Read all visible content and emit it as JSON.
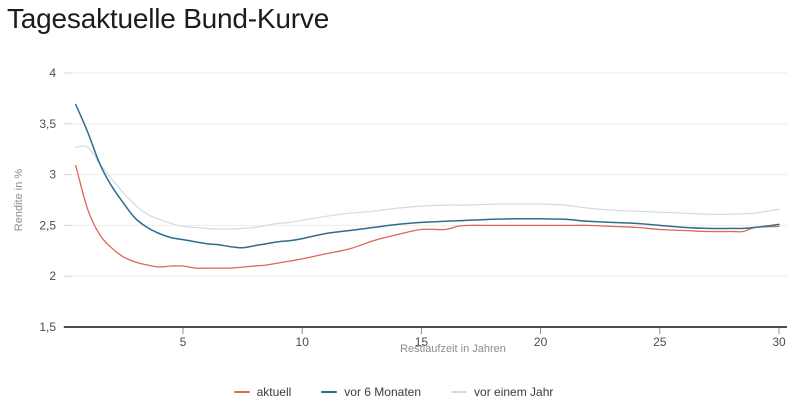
{
  "title": "Tagesaktuelle Bund-Kurve",
  "chart_data": {
    "type": "line",
    "title": "Tagesaktuelle Bund-Kurve",
    "xlabel": "Restlaufzeit in Jahren",
    "ylabel": "Rendite in %",
    "xlim": [
      0,
      30.3
    ],
    "ylim": [
      1.5,
      4
    ],
    "grid": "horizontal",
    "legend_position": "bottom",
    "x_ticks": [
      {
        "v": 5,
        "label": "5"
      },
      {
        "v": 10,
        "label": "10"
      },
      {
        "v": 15,
        "label": "15"
      },
      {
        "v": 20,
        "label": "20"
      },
      {
        "v": 25,
        "label": "25"
      },
      {
        "v": 30,
        "label": "30"
      }
    ],
    "y_ticks": [
      {
        "v": 4.0,
        "label": "4"
      },
      {
        "v": 3.5,
        "label": "3,5"
      },
      {
        "v": 3.0,
        "label": "3"
      },
      {
        "v": 2.5,
        "label": "2,5"
      },
      {
        "v": 2.0,
        "label": "2"
      },
      {
        "v": 1.5,
        "label": "1,5"
      }
    ],
    "x": [
      0.5,
      1,
      1.5,
      2,
      2.5,
      3,
      3.5,
      4,
      4.5,
      5,
      5.5,
      6,
      6.5,
      7,
      7.5,
      8,
      8.5,
      9,
      9.5,
      10,
      11,
      12,
      13,
      14,
      15,
      16,
      16.5,
      17,
      18,
      19,
      20,
      21,
      22,
      23,
      24,
      25,
      26,
      27,
      28,
      28.5,
      29,
      30
    ],
    "series": [
      {
        "name": "vor einem Jahr",
        "color": "#d5dbdb",
        "width": 1.2,
        "values": [
          3.27,
          3.27,
          3.11,
          2.96,
          2.82,
          2.7,
          2.61,
          2.56,
          2.52,
          2.49,
          2.48,
          2.47,
          2.465,
          2.465,
          2.47,
          2.48,
          2.5,
          2.52,
          2.53,
          2.55,
          2.59,
          2.62,
          2.64,
          2.67,
          2.69,
          2.7,
          2.7,
          2.7,
          2.71,
          2.71,
          2.71,
          2.7,
          2.67,
          2.65,
          2.64,
          2.63,
          2.62,
          2.61,
          2.61,
          2.615,
          2.62,
          2.66
        ]
      },
      {
        "name": "aktuell",
        "color": "#dc6857",
        "width": 1.3,
        "values": [
          3.09,
          2.66,
          2.41,
          2.28,
          2.19,
          2.14,
          2.11,
          2.09,
          2.1,
          2.1,
          2.08,
          2.08,
          2.08,
          2.08,
          2.09,
          2.1,
          2.11,
          2.13,
          2.15,
          2.17,
          2.22,
          2.27,
          2.35,
          2.41,
          2.46,
          2.46,
          2.49,
          2.5,
          2.5,
          2.5,
          2.5,
          2.5,
          2.5,
          2.49,
          2.48,
          2.46,
          2.45,
          2.44,
          2.44,
          2.44,
          2.48,
          2.49
        ]
      },
      {
        "name": "vor 6 Monaten",
        "color": "#2e6d90",
        "width": 1.5,
        "values": [
          3.69,
          3.42,
          3.11,
          2.89,
          2.72,
          2.57,
          2.48,
          2.42,
          2.38,
          2.36,
          2.34,
          2.32,
          2.31,
          2.29,
          2.28,
          2.3,
          2.32,
          2.34,
          2.35,
          2.37,
          2.42,
          2.45,
          2.48,
          2.51,
          2.53,
          2.54,
          2.545,
          2.55,
          2.56,
          2.565,
          2.565,
          2.56,
          2.54,
          2.53,
          2.52,
          2.5,
          2.48,
          2.47,
          2.47,
          2.47,
          2.48,
          2.51
        ]
      }
    ],
    "legend_order": [
      "aktuell",
      "vor 6 Monaten",
      "vor einem Jahr"
    ]
  },
  "legend": {
    "aktuell": "aktuell",
    "vor6": "vor 6 Monaten",
    "vorEinemJahr": "vor einem Jahr"
  },
  "colors": {
    "aktuell": "#dc6857",
    "vor6": "#2e6d90",
    "vorEinemJahr": "#d5dbdb",
    "grid": "#ededed",
    "axis": "#4d4d4d",
    "tick": "#8c8c8c",
    "tick_label": "#4d4d4d",
    "axis_title": "#8c8c8c",
    "title": "#1c1c1c"
  }
}
